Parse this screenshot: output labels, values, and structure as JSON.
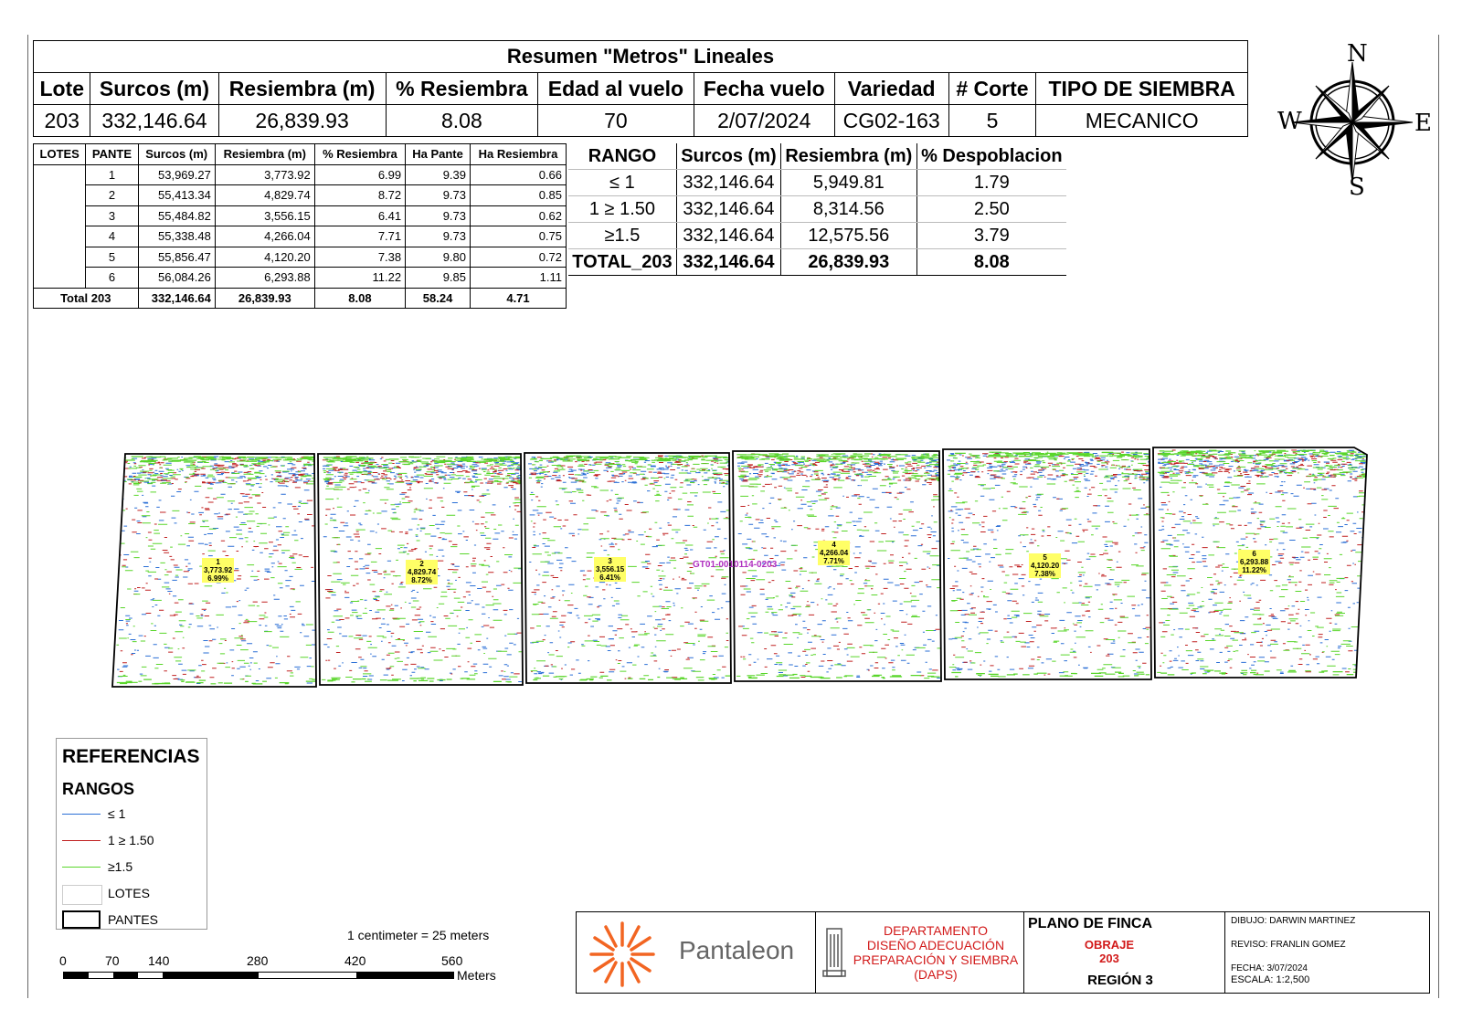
{
  "summary": {
    "title": "Resumen \"Metros\" Lineales",
    "headers": [
      "Lote",
      "Surcos (m)",
      "Resiembra (m)",
      "% Resiembra",
      "Edad al vuelo",
      "Fecha vuelo",
      "Variedad",
      "# Corte",
      "TIPO DE SIEMBRA"
    ],
    "values": [
      "203",
      "332,146.64",
      "26,839.93",
      "8.08",
      "70",
      "2/07/2024",
      "CG02-163",
      "5",
      "MECANICO"
    ]
  },
  "lotes_table": {
    "headers": [
      "LOTES",
      "PANTE",
      "Surcos (m)",
      "Resiembra (m)",
      "% Resiembra",
      "Ha Pante",
      "Ha Resiembra"
    ],
    "rows": [
      [
        "1",
        "53,969.27",
        "3,773.92",
        "6.99",
        "9.39",
        "0.66"
      ],
      [
        "2",
        "55,413.34",
        "4,829.74",
        "8.72",
        "9.73",
        "0.85"
      ],
      [
        "3",
        "55,484.82",
        "3,556.15",
        "6.41",
        "9.73",
        "0.62"
      ],
      [
        "4",
        "55,338.48",
        "4,266.04",
        "7.71",
        "9.73",
        "0.75"
      ],
      [
        "5",
        "55,856.47",
        "4,120.20",
        "7.38",
        "9.80",
        "0.72"
      ],
      [
        "6",
        "56,084.26",
        "6,293.88",
        "11.22",
        "9.85",
        "1.11"
      ]
    ],
    "total": [
      "Total 203",
      "332,146.64",
      "26,839.93",
      "8.08",
      "58.24",
      "4.71"
    ]
  },
  "rango_table": {
    "headers": [
      "RANGO",
      "Surcos (m)",
      "Resiembra (m)",
      "% Despoblacion"
    ],
    "rows": [
      [
        "≤ 1",
        "332,146.64",
        "5,949.81",
        "1.79"
      ],
      [
        "1 ≥ 1.50",
        "332,146.64",
        "8,314.56",
        "2.50"
      ],
      [
        "≥1.5",
        "332,146.64",
        "12,575.56",
        "3.79"
      ]
    ],
    "total": [
      "TOTAL_203",
      "332,146.64",
      "26,839.93",
      "8.08"
    ]
  },
  "compass": {
    "n": "N",
    "s": "S",
    "e": "E",
    "w": "W",
    "icon": "compass-rose-icon"
  },
  "map": {
    "pantes": [
      {
        "id": "1",
        "resiembra": "3,773.92",
        "pct": "6.99%"
      },
      {
        "id": "2",
        "resiembra": "4,829.74",
        "pct": "8.72%"
      },
      {
        "id": "3",
        "resiembra": "3,556.15",
        "pct": "6.41%"
      },
      {
        "id": "4",
        "resiembra": "4,266.04",
        "pct": "7.71%"
      },
      {
        "id": "5",
        "resiembra": "4,120.20",
        "pct": "7.38%"
      },
      {
        "id": "6",
        "resiembra": "6,293.88",
        "pct": "11.22%"
      }
    ],
    "center_label": "GT01-0010114-0203",
    "center_label_color": "#b030c0",
    "range_colors": {
      "low": "#2a6fd6",
      "mid": "#c02020",
      "high": "#59d62a"
    }
  },
  "legend": {
    "title": "REFERENCIAS",
    "subtitle": "RANGOS",
    "items": [
      {
        "label": "≤ 1",
        "color": "#2a6fd6"
      },
      {
        "label": "1 ≥ 1.50",
        "color": "#c02020"
      },
      {
        "label": "≥1.5",
        "color": "#59d62a"
      }
    ],
    "lotes_label": "LOTES",
    "pantes_label": "PANTES"
  },
  "scale": {
    "ratio_text": "1 centimeter = 25 meters",
    "ticks": [
      "0",
      "70",
      "140",
      "280",
      "420",
      "560"
    ],
    "unit": "Meters"
  },
  "title_block": {
    "brand": "Pantaleon",
    "dept_lines": [
      "DEPARTAMENTO",
      "DISEÑO ADECUACIÓN",
      "PREPARACIÓN Y SIEMBRA",
      "(DAPS)"
    ],
    "plano": "PLANO DE FINCA",
    "finca": "OBRAJE",
    "lote": "203",
    "region": "REGIÓN 3",
    "dibujo": "DIBUJO: DARWIN MARTINEZ",
    "reviso": "REVISO: FRANLIN GOMEZ",
    "fecha": "FECHA: 3/07/2024",
    "escala": "ESCALA: 1:2,500",
    "brand_color": "#f26522"
  }
}
